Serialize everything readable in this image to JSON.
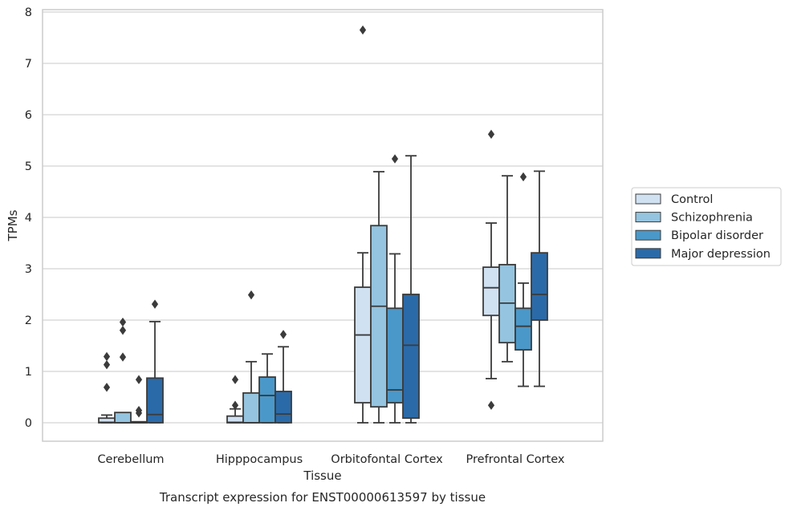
{
  "chart_data": {
    "type": "box",
    "xlabel": "Tissue",
    "ylabel": "TPMs",
    "caption": "Transcript expression for ENST00000613597 by tissue",
    "ylim": [
      -0.35,
      8.05
    ],
    "yticks": [
      0,
      1,
      2,
      3,
      4,
      5,
      6,
      7,
      8
    ],
    "grid": true,
    "legend_position": "right",
    "categories": [
      "Cerebellum",
      "Hipppocampus",
      "Orbitofontal Cortex",
      "Prefrontal Cortex"
    ],
    "series": [
      {
        "name": "Control",
        "color": "#d0e1f2",
        "boxes": [
          {
            "whislo": 0,
            "q1": 0,
            "med": 0.01,
            "q3": 0.09,
            "whishi": 0.15,
            "fliers": [
              0.69,
              1.13,
              1.29
            ]
          },
          {
            "whislo": 0,
            "q1": 0,
            "med": 0.01,
            "q3": 0.13,
            "whishi": 0.27,
            "fliers": [
              0.34,
              0.84
            ]
          },
          {
            "whislo": 0,
            "q1": 0.39,
            "med": 1.71,
            "q3": 2.64,
            "whishi": 3.31,
            "fliers": [
              7.65
            ]
          },
          {
            "whislo": 0.86,
            "q1": 2.09,
            "med": 2.63,
            "q3": 3.03,
            "whishi": 3.89,
            "fliers": [
              0.34,
              5.62
            ]
          }
        ]
      },
      {
        "name": "Schizophrenia",
        "color": "#94c4df",
        "boxes": [
          {
            "whislo": 0,
            "q1": 0,
            "med": 0,
            "q3": 0.2,
            "whishi": 0.2,
            "fliers": [
              1.28,
              1.8,
              1.96
            ]
          },
          {
            "whislo": 0,
            "q1": 0,
            "med": 0,
            "q3": 0.58,
            "whishi": 1.19,
            "fliers": [
              2.49
            ]
          },
          {
            "whislo": 0,
            "q1": 0.31,
            "med": 2.27,
            "q3": 3.84,
            "whishi": 4.89,
            "fliers": []
          },
          {
            "whislo": 1.19,
            "q1": 1.56,
            "med": 2.33,
            "q3": 3.08,
            "whishi": 4.81,
            "fliers": []
          }
        ]
      },
      {
        "name": "Bipolar disorder",
        "color": "#4a98c9",
        "boxes": [
          {
            "whislo": 0,
            "q1": 0,
            "med": 0,
            "q3": 0.02,
            "whishi": 0.02,
            "fliers": [
              0.19,
              0.24,
              0.84
            ]
          },
          {
            "whislo": 0,
            "q1": 0,
            "med": 0.53,
            "q3": 0.89,
            "whishi": 1.34,
            "fliers": []
          },
          {
            "whislo": 0,
            "q1": 0.39,
            "med": 0.64,
            "q3": 2.23,
            "whishi": 3.29,
            "fliers": [
              5.14
            ]
          },
          {
            "whislo": 0.71,
            "q1": 1.42,
            "med": 1.88,
            "q3": 2.23,
            "whishi": 2.72,
            "fliers": [
              4.79
            ]
          }
        ]
      },
      {
        "name": "Major depression",
        "color": "#2b6aa8",
        "boxes": [
          {
            "whislo": 0,
            "q1": 0,
            "med": 0.16,
            "q3": 0.87,
            "whishi": 1.97,
            "fliers": [
              2.31
            ]
          },
          {
            "whislo": 0,
            "q1": 0,
            "med": 0.17,
            "q3": 0.61,
            "whishi": 1.48,
            "fliers": [
              1.72
            ]
          },
          {
            "whislo": 0,
            "q1": 0.09,
            "med": 1.51,
            "q3": 2.5,
            "whishi": 5.2,
            "fliers": []
          },
          {
            "whislo": 0.71,
            "q1": 2.0,
            "med": 2.5,
            "q3": 3.31,
            "whishi": 4.9,
            "fliers": []
          }
        ]
      }
    ]
  }
}
